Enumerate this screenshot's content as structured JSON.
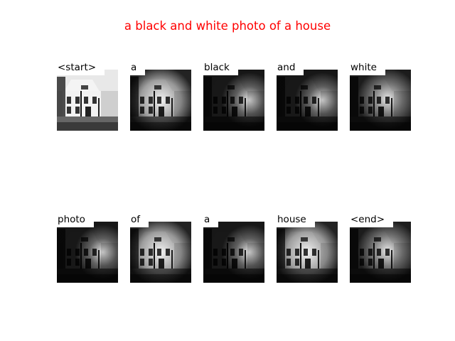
{
  "title": "a black and white photo of a house",
  "colors": {
    "title": "#ff0000",
    "background": "#ffffff"
  },
  "panels": [
    {
      "word": "<start>",
      "image": "house-photo",
      "attention": "none"
    },
    {
      "word": "a",
      "image": "house-photo",
      "attention": "center"
    },
    {
      "word": "black",
      "image": "house-photo",
      "attention": "right"
    },
    {
      "word": "and",
      "image": "house-photo",
      "attention": "right"
    },
    {
      "word": "white",
      "image": "house-photo",
      "attention": "center-right"
    },
    {
      "word": "photo",
      "image": "house-photo",
      "attention": "right"
    },
    {
      "word": "of",
      "image": "house-photo",
      "attention": "center"
    },
    {
      "word": "a",
      "image": "house-photo",
      "attention": "right"
    },
    {
      "word": "house",
      "image": "house-photo",
      "attention": "center"
    },
    {
      "word": "<end>",
      "image": "house-photo",
      "attention": "center-right"
    }
  ]
}
